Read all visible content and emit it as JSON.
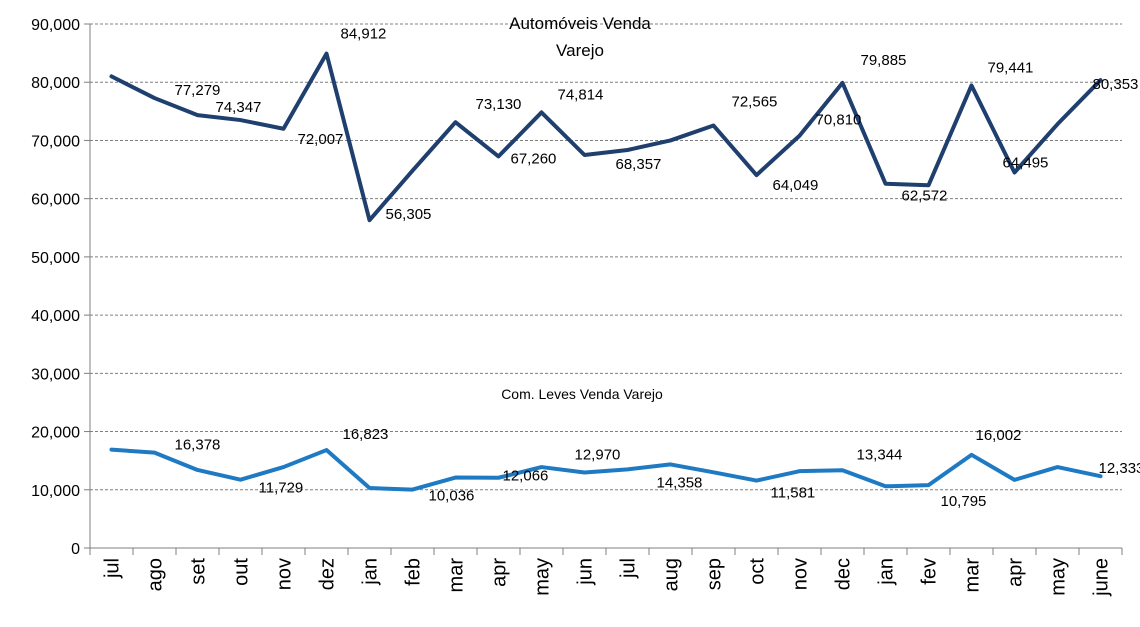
{
  "chart_data": {
    "type": "line",
    "categories": [
      "jul",
      "ago",
      "set",
      "out",
      "nov",
      "dez",
      "jan",
      "feb",
      "mar",
      "apr",
      "may",
      "jun",
      "jul",
      "aug",
      "sep",
      "oct",
      "nov",
      "dec",
      "jan",
      "fev",
      "mar",
      "apr",
      "may",
      "june"
    ],
    "ylim": [
      0,
      90000
    ],
    "yticks": [
      "0",
      "10,000",
      "20,000",
      "30,000",
      "40,000",
      "50,000",
      "60,000",
      "70,000",
      "80,000",
      "90,000"
    ],
    "grid": true,
    "series": [
      {
        "name": "Automóveis Venda Varejo",
        "title_lines": [
          "Automóveis Venda",
          "Varejo"
        ],
        "color": "#1f3f6e",
        "values": [
          81000,
          77279,
          74347,
          73500,
          72007,
          84912,
          56305,
          64800,
          73130,
          67260,
          74814,
          67500,
          68357,
          70000,
          72565,
          64049,
          70810,
          79885,
          62572,
          62300,
          79441,
          64495,
          72800,
          80353
        ],
        "labels": [
          null,
          "77,279",
          "74,347",
          null,
          "72,007",
          "84,912",
          "56,305",
          null,
          "73,130",
          "67,260",
          "74,814",
          null,
          "68,357",
          null,
          "72,565",
          "64,049",
          "70,810",
          "79,885",
          "62,572",
          null,
          "79,441",
          "64,495",
          null,
          "80,353"
        ]
      },
      {
        "name": "Com. Leves Venda Varejo",
        "color": "#1f7ac4",
        "values": [
          16900,
          16378,
          13400,
          11729,
          13900,
          16823,
          10300,
          10036,
          12100,
          12066,
          13900,
          12970,
          13500,
          14358,
          13000,
          11581,
          13200,
          13344,
          10600,
          10795,
          16002,
          11700,
          13900,
          12333
        ],
        "labels": [
          null,
          "16,378",
          null,
          "11,729",
          null,
          "16,823",
          null,
          "10,036",
          null,
          "12,066",
          null,
          "12,970",
          null,
          "14,358",
          null,
          "11,581",
          null,
          "13,344",
          null,
          "10,795",
          "16,002",
          null,
          null,
          "12,333"
        ]
      }
    ]
  }
}
